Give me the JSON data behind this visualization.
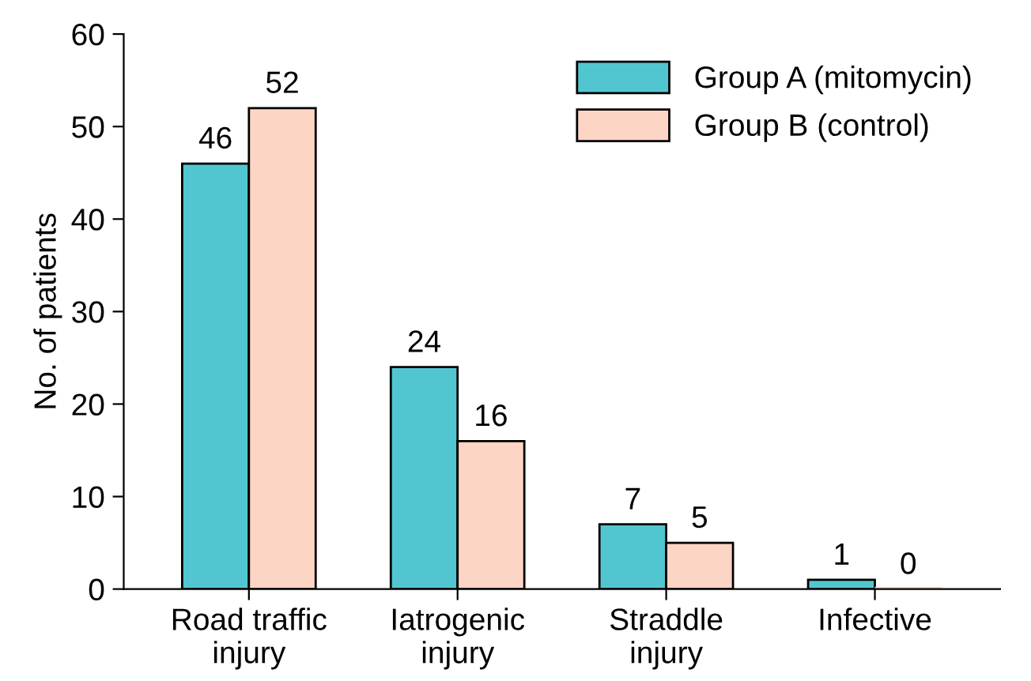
{
  "chart_data": {
    "type": "bar",
    "ylabel": "No. of patients",
    "categories": [
      "Road traffic\ninjury",
      "Iatrogenic\ninjury",
      "Straddle\ninjury",
      "Infective"
    ],
    "series": [
      {
        "name": "Group A (mitomycin)",
        "color": "#52c6d0",
        "values": [
          46,
          24,
          7,
          1
        ]
      },
      {
        "name": "Group B (control)",
        "color": "#fcd5c4",
        "values": [
          52,
          16,
          5,
          0
        ]
      }
    ],
    "ylim": [
      0,
      60
    ],
    "yticks": [
      0,
      10,
      20,
      30,
      40,
      50,
      60
    ],
    "data_labels": true,
    "legend": "top right",
    "grid": false
  }
}
